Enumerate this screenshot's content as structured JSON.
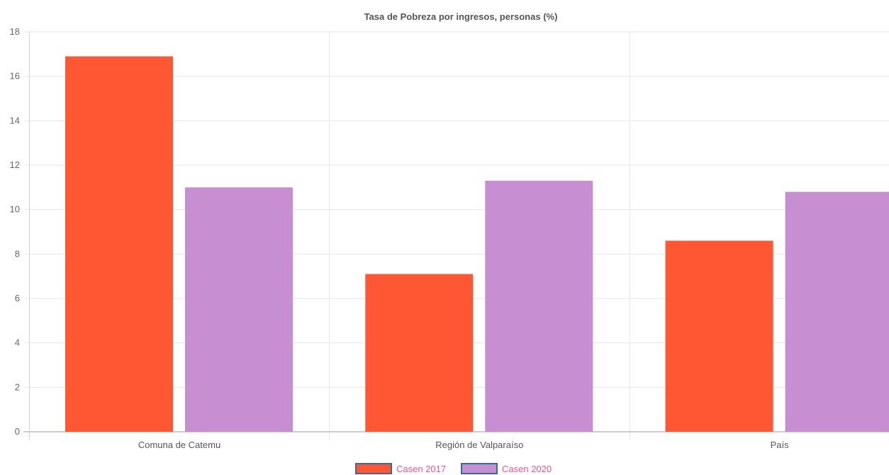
{
  "chart_data": {
    "type": "bar",
    "title": "Tasa de Pobreza por ingresos, personas (%)",
    "xlabel": "",
    "ylabel": "",
    "categories": [
      "Comuna de Catemu",
      "Región de Valparaíso",
      "País"
    ],
    "series": [
      {
        "name": "Casen 2017",
        "values": [
          16.9,
          7.1,
          8.6
        ],
        "color": "#FF5733"
      },
      {
        "name": "Casen 2020",
        "values": [
          11.0,
          11.3,
          10.8
        ],
        "color": "#C78ED1"
      }
    ],
    "ylim": [
      0,
      18
    ],
    "yticks": [
      "0",
      "2",
      "4",
      "6",
      "8",
      "10",
      "12",
      "14",
      "16",
      "18"
    ],
    "grid": true,
    "legend_position": "bottom-center",
    "legend_text_color": "#FF4F8B",
    "legend_border_color": "#2F6F9F"
  }
}
